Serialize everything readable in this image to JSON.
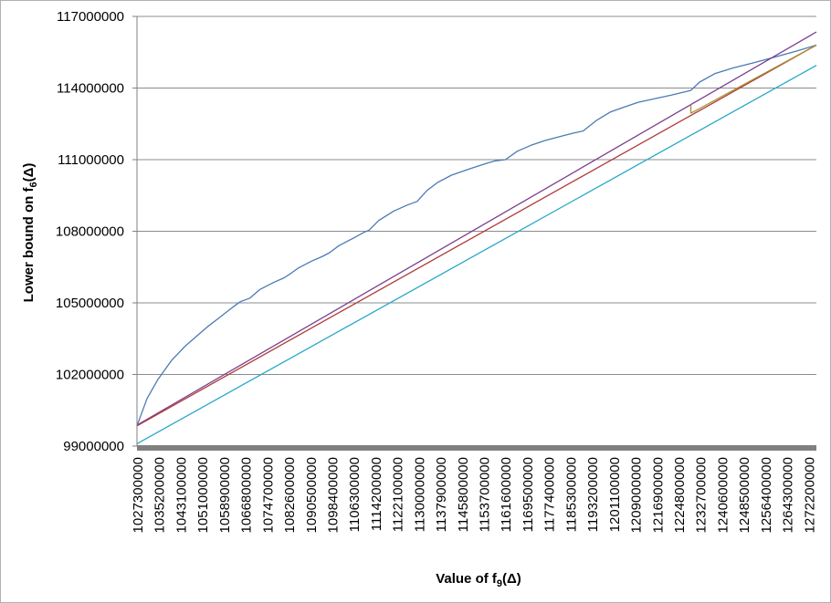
{
  "chart_data": {
    "type": "line",
    "title": "",
    "xlabel": {
      "main": "Value of f",
      "sub": "9",
      "tail": "(Δ)"
    },
    "ylabel": {
      "main": "Lower bound on f",
      "sub": "6",
      "tail": "(Δ)"
    },
    "ylim": [
      99000000,
      117000000
    ],
    "xlim": [
      1027300000,
      1275100000
    ],
    "grid": "horizontal",
    "legend": "none",
    "y_ticks": [
      "99000000",
      "102000000",
      "105000000",
      "108000000",
      "111000000",
      "114000000",
      "117000000"
    ],
    "x_ticks": [
      "1027300000",
      "1035200000",
      "1043100000",
      "1051000000",
      "1058900000",
      "1066800000",
      "1074700000",
      "1082600000",
      "1090500000",
      "1098400000",
      "1106300000",
      "1114200000",
      "1122100000",
      "1130000000",
      "1137900000",
      "1145800000",
      "1153700000",
      "1161600000",
      "1169500000",
      "1177400000",
      "1185300000",
      "1193200000",
      "1201100000",
      "1209000000",
      "1216900000",
      "1224800000",
      "1232700000",
      "1240600000",
      "1248500000",
      "1256400000",
      "1264300000",
      "1272200000"
    ],
    "series": [
      {
        "color": "#4a7ab5",
        "x": [
          1027300000,
          1031000000,
          1035000000,
          1040000000,
          1045000000,
          1050000000,
          1053000000,
          1057000000,
          1062000000,
          1065000000,
          1068500000,
          1072000000,
          1077000000,
          1081000000,
          1083000000,
          1086000000,
          1091000000,
          1095000000,
          1097500000,
          1101000000,
          1106000000,
          1110000000,
          1112000000,
          1115500000,
          1121000000,
          1126000000,
          1129500000,
          1133000000,
          1137000000,
          1142000000,
          1147000000,
          1151000000,
          1155000000,
          1158000000,
          1161700000,
          1166000000,
          1171000000,
          1176000000,
          1181000000,
          1186000000,
          1190000000,
          1195000000,
          1200000000,
          1205000000,
          1210000000,
          1216000000,
          1222000000,
          1229300000,
          1232500000,
          1238000000,
          1245000000,
          1252000000,
          1260000000,
          1268000000,
          1275100000
        ],
        "y": [
          99850000,
          101000000,
          101800000,
          102600000,
          103200000,
          103700000,
          104000000,
          104350000,
          104800000,
          105050000,
          105200000,
          105550000,
          105850000,
          106050000,
          106200000,
          106450000,
          106750000,
          106950000,
          107100000,
          107400000,
          107700000,
          107950000,
          108050000,
          108450000,
          108850000,
          109100000,
          109250000,
          109700000,
          110050000,
          110350000,
          110550000,
          110700000,
          110850000,
          110950000,
          111000000,
          111350000,
          111600000,
          111800000,
          111950000,
          112100000,
          112200000,
          112650000,
          113000000,
          113200000,
          113400000,
          113550000,
          113700000,
          113900000,
          114250000,
          114600000,
          114850000,
          115050000,
          115300000,
          115550000,
          115800000
        ]
      },
      {
        "color": "#7a3f8c",
        "x": [
          1027300000,
          1275100000
        ],
        "y": [
          99880000,
          116350000
        ]
      },
      {
        "color": "#b03a3a",
        "x": [
          1027300000,
          1275100000
        ],
        "y": [
          99850000,
          115800000
        ]
      },
      {
        "color": "#2aa8c8",
        "x": [
          1027300000,
          1275100000
        ],
        "y": [
          99100000,
          114950000
        ]
      },
      {
        "color": "#a89030",
        "x": [
          1229300000,
          1229300000,
          1231000000,
          1275100000
        ],
        "y": [
          113300000,
          112950000,
          113050000,
          115800000
        ]
      }
    ]
  }
}
